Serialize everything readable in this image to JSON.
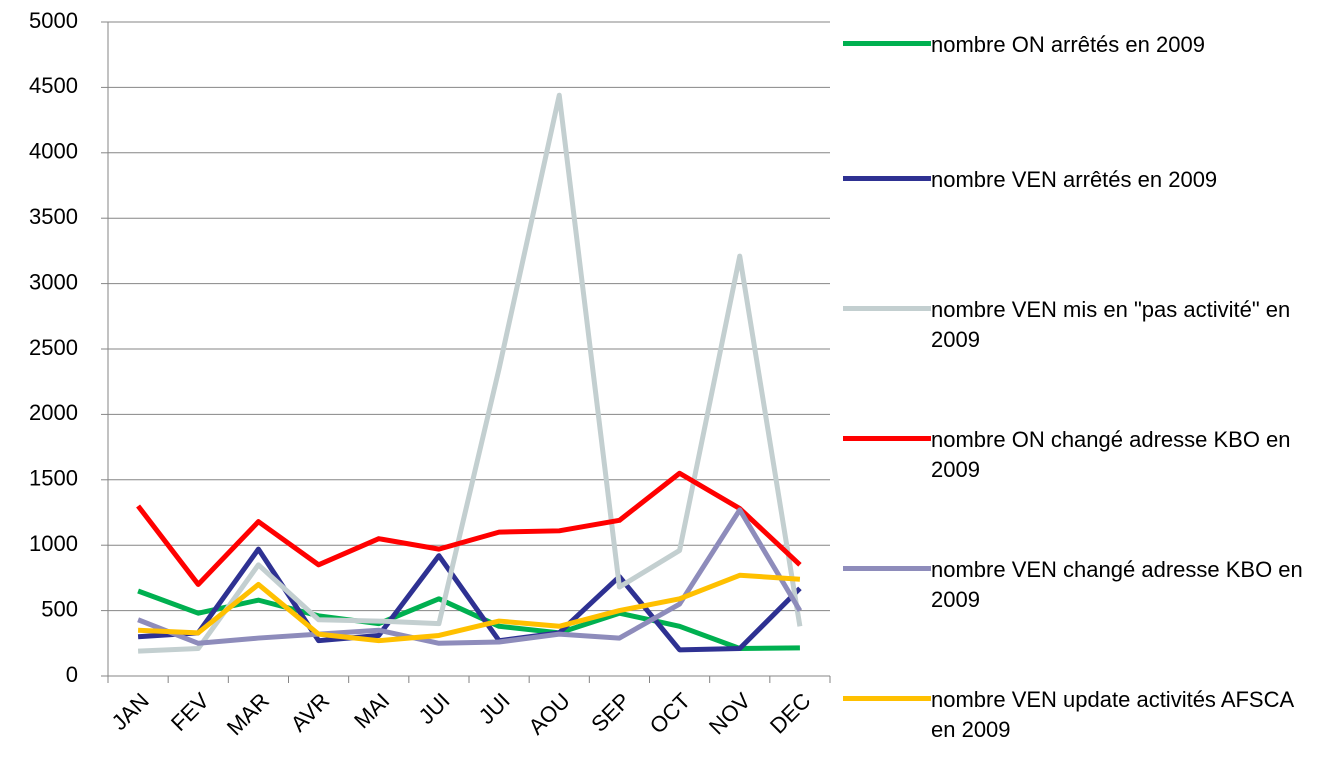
{
  "chart_data": {
    "type": "line",
    "categories": [
      "JAN",
      "FEV",
      "MAR",
      "AVR",
      "MAI",
      "JUI",
      "JUI",
      "AOU",
      "SEP",
      "OCT",
      "NOV",
      "DEC"
    ],
    "series": [
      {
        "name": "nombre ON arrêtés en 2009",
        "color": "#00b050",
        "values": [
          650,
          480,
          580,
          460,
          400,
          590,
          380,
          330,
          480,
          380,
          210,
          215
        ]
      },
      {
        "name": "nombre VEN arrêtés en 2009",
        "color": "#2e3192",
        "values": [
          300,
          330,
          970,
          270,
          310,
          920,
          270,
          330,
          760,
          200,
          210,
          670
        ]
      },
      {
        "name": "nombre VEN mis en \"pas activité\" en 2009",
        "color": "#c3cfd0",
        "values": [
          190,
          210,
          850,
          430,
          420,
          400,
          2350,
          4440,
          680,
          960,
          3210,
          380
        ]
      },
      {
        "name": "nombre ON changé adresse KBO en 2009",
        "color": "#ff0000",
        "values": [
          1300,
          700,
          1180,
          850,
          1050,
          970,
          1100,
          1110,
          1190,
          1550,
          1280,
          850
        ]
      },
      {
        "name": "nombre VEN changé adresse KBO en 2009",
        "color": "#8e8cbb",
        "values": [
          430,
          250,
          290,
          320,
          350,
          250,
          260,
          320,
          290,
          550,
          1270,
          500
        ]
      },
      {
        "name": "nombre VEN update activités AFSCA en 2009",
        "color": "#ffc000",
        "values": [
          350,
          330,
          700,
          320,
          270,
          310,
          420,
          380,
          500,
          590,
          770,
          740
        ]
      }
    ],
    "ylim": [
      0,
      5000
    ],
    "yticks": [
      0,
      500,
      1000,
      1500,
      2000,
      2500,
      3000,
      3500,
      4000,
      4500,
      5000
    ],
    "grid": true,
    "legend": "right"
  }
}
